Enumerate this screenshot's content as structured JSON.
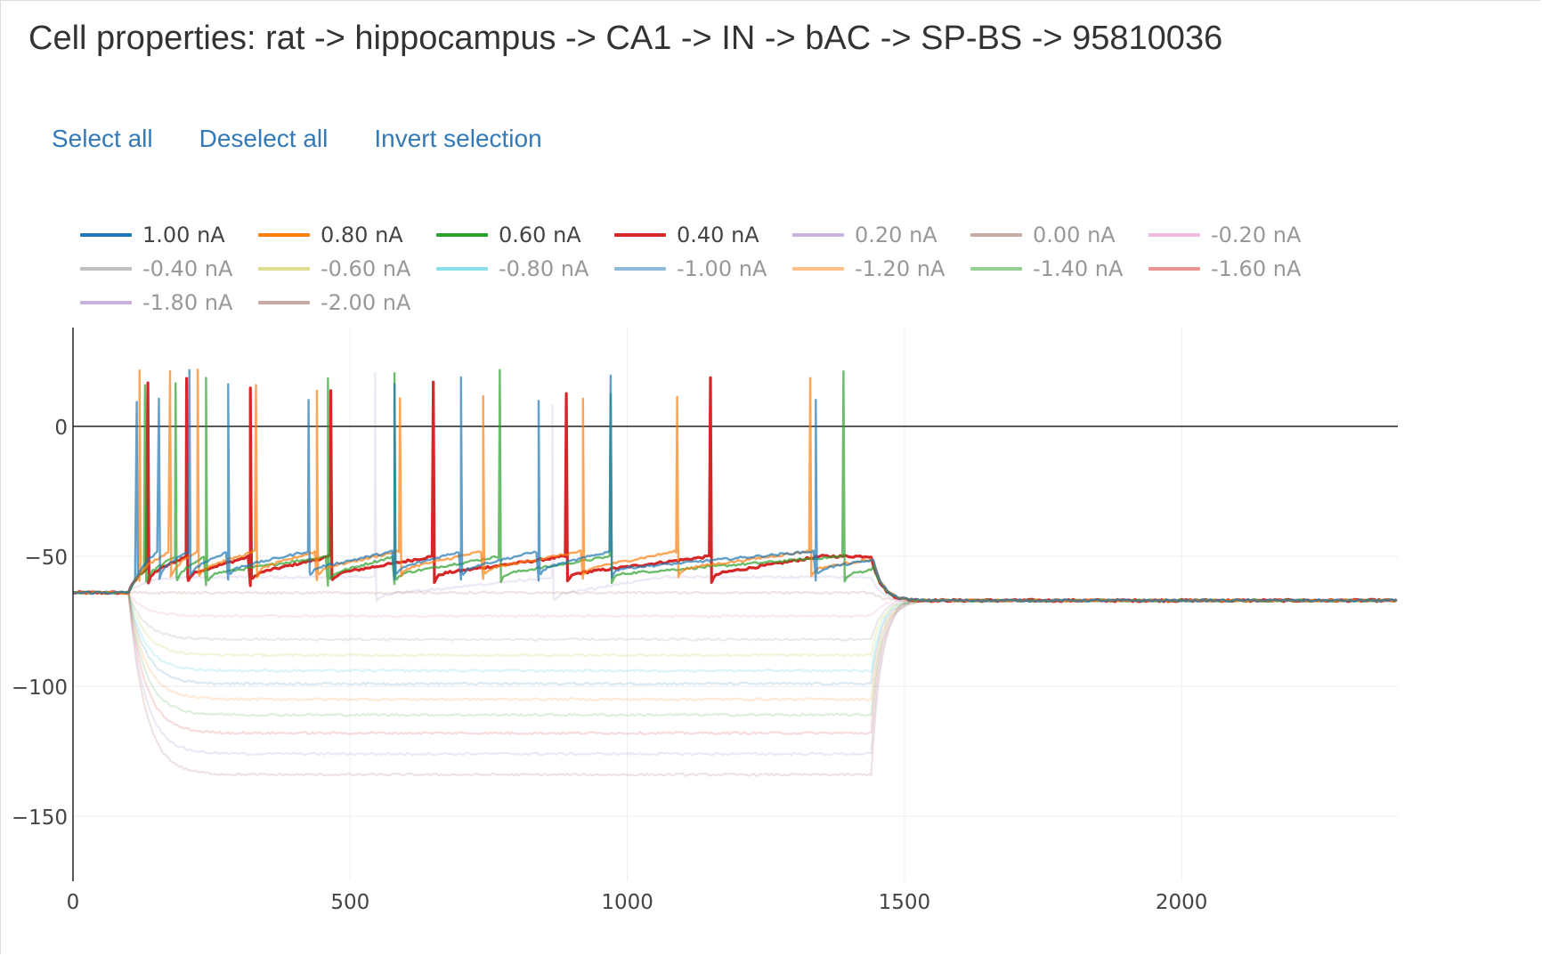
{
  "page": {
    "title": "Cell properties: rat -> hippocampus -> CA1 -> IN -> bAC -> SP-BS -> 95810036"
  },
  "controls": {
    "select_all": "Select all",
    "deselect_all": "Deselect all",
    "invert_selection": "Invert selection"
  },
  "chart_data": {
    "type": "line",
    "title": "",
    "xlabel": "",
    "ylabel": "",
    "xlim": [
      0,
      2390
    ],
    "ylim": [
      -175,
      38
    ],
    "xticks": [
      0,
      500,
      1000,
      1500,
      2000
    ],
    "yticks": [
      0,
      -50,
      -100,
      -150
    ],
    "tick_labels": {
      "x": [
        "0",
        "500",
        "1000",
        "1500",
        "2000"
      ],
      "y": [
        "0",
        "−50",
        "−100",
        "−150"
      ]
    },
    "zero_line": true,
    "grid": true,
    "legend_position": "top",
    "stimulus": {
      "start": 100,
      "end": 1440
    },
    "resting_potential": -64,
    "series": [
      {
        "name": "1.00 nA",
        "color": "#1f77b4",
        "selected": true,
        "steady_state": -48,
        "spike_times": [
          115,
          155,
          210,
          280,
          425,
          580,
          700,
          840,
          970,
          1340
        ]
      },
      {
        "name": "0.80 nA",
        "color": "#ff7f0e",
        "selected": true,
        "steady_state": -48,
        "spike_times": [
          120,
          175,
          225,
          330,
          440,
          590,
          740,
          920,
          1090,
          1330
        ]
      },
      {
        "name": "0.60 nA",
        "color": "#2ca02c",
        "selected": true,
        "steady_state": -50,
        "spike_times": [
          130,
          185,
          240,
          460,
          580,
          770,
          970,
          1390
        ]
      },
      {
        "name": "0.40 nA",
        "color": "#d62728",
        "selected": true,
        "steady_state": -50,
        "spike_times": [
          135,
          205,
          320,
          465,
          650,
          890,
          1150
        ]
      },
      {
        "name": "0.20 nA",
        "color": "#9467bd",
        "selected": false,
        "steady_state": -58,
        "spike_times": [
          545,
          865
        ]
      },
      {
        "name": "0.00 nA",
        "color": "#8c564b",
        "selected": false,
        "steady_state": -64,
        "spike_times": []
      },
      {
        "name": "-0.20 nA",
        "color": "#e377c2",
        "selected": false,
        "steady_state": -73,
        "spike_times": []
      },
      {
        "name": "-0.40 nA",
        "color": "#7f7f7f",
        "selected": false,
        "steady_state": -82,
        "spike_times": []
      },
      {
        "name": "-0.60 nA",
        "color": "#bcbd22",
        "selected": false,
        "steady_state": -88,
        "spike_times": []
      },
      {
        "name": "-0.80 nA",
        "color": "#17becf",
        "selected": false,
        "steady_state": -94,
        "spike_times": []
      },
      {
        "name": "-1.00 nA",
        "color": "#1f77b4",
        "selected": false,
        "steady_state": -99,
        "spike_times": []
      },
      {
        "name": "-1.20 nA",
        "color": "#ff7f0e",
        "selected": false,
        "steady_state": -105,
        "spike_times": []
      },
      {
        "name": "-1.40 nA",
        "color": "#2ca02c",
        "selected": false,
        "steady_state": -111,
        "spike_times": []
      },
      {
        "name": "-1.60 nA",
        "color": "#d62728",
        "selected": false,
        "steady_state": -118,
        "spike_times": []
      },
      {
        "name": "-1.80 nA",
        "color": "#9467bd",
        "selected": false,
        "steady_state": -126,
        "spike_times": []
      },
      {
        "name": "-2.00 nA",
        "color": "#8c564b",
        "selected": false,
        "steady_state": -134,
        "spike_times": []
      }
    ]
  }
}
